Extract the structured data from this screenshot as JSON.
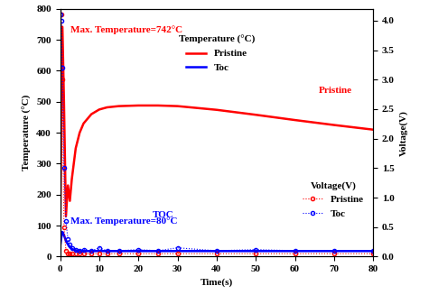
{
  "chart_data": {
    "type": "line",
    "x_label": "Time(s)",
    "y_label": "Temperature (°C)",
    "y2_label": "Voltage(V)",
    "legend_titles": {
      "y": "Temperature (°C)",
      "y2": "Voltage(V)"
    },
    "annotations": {
      "pristine_max": "Max. Temperature=742°C",
      "toc_max": "Max. Temperature=80°C",
      "photo_pristine": "Pristine",
      "photo_toc": "TOC"
    },
    "x": [
      0,
      0.3,
      0.6,
      1.0,
      1.5,
      2.0,
      2.5,
      3.0,
      4,
      5,
      6,
      8,
      10,
      12,
      15,
      20,
      25,
      30,
      40,
      50,
      60,
      70,
      80
    ],
    "xlim": [
      0,
      80
    ],
    "xticks": [
      0,
      10,
      20,
      30,
      40,
      50,
      60,
      70,
      80
    ],
    "ylim": [
      0,
      800
    ],
    "yticks": [
      0,
      100,
      200,
      300,
      400,
      500,
      600,
      700,
      800
    ],
    "y2lim": [
      0,
      4.2
    ],
    "y2ticks": [
      {
        "value": 0,
        "label": "0.0"
      },
      {
        "value": 0.5,
        "label": "0.5"
      },
      {
        "value": 1,
        "label": "1.0"
      },
      {
        "value": 1.5,
        "label": "1.5"
      },
      {
        "value": 2,
        "label": "2.0"
      },
      {
        "value": 2.5,
        "label": "2.5"
      },
      {
        "value": 3,
        "label": "3.0"
      },
      {
        "value": 3.5,
        "label": "3.5"
      },
      {
        "value": 4,
        "label": "4.0"
      }
    ],
    "legend": "upper center",
    "series": [
      {
        "name": "Pristine",
        "color": "#ff0000",
        "line_style": "solid",
        "marker": "none",
        "values": [
          30,
          400,
          742,
          500,
          130,
          230,
          180,
          250,
          350,
          400,
          430,
          460,
          475,
          482,
          486,
          488,
          488,
          486,
          474,
          458,
          441,
          425,
          410
        ]
      },
      {
        "name": "Toc",
        "color": "#0000ff",
        "line_style": "solid",
        "marker": "none",
        "values": [
          30,
          60,
          80,
          70,
          50,
          40,
          30,
          25,
          20,
          18,
          18,
          18,
          18,
          18,
          18,
          18,
          18,
          18,
          18,
          18,
          18,
          18,
          18
        ]
      },
      {
        "name": "Pristine",
        "color": "#ff0000",
        "line_style": "dotted",
        "marker": "circle",
        "axis": "y2",
        "values": [
          4.1,
          4.1,
          3.0,
          0.5,
          0.1,
          0.05,
          0.05,
          0.05,
          0.05,
          0.05,
          0.05,
          0.05,
          0.05,
          0.05,
          0.05,
          0.05,
          0.05,
          0.05,
          0.05,
          0.05,
          0.05,
          0.05,
          0.05
        ]
      },
      {
        "name": "Toc",
        "color": "#0000ff",
        "line_style": "dotted",
        "marker": "circle",
        "axis": "y2",
        "values": [
          4.1,
          4.0,
          3.2,
          1.5,
          0.6,
          0.3,
          0.2,
          0.15,
          0.12,
          0.1,
          0.12,
          0.1,
          0.15,
          0.1,
          0.1,
          0.12,
          0.1,
          0.15,
          0.1,
          0.12,
          0.1,
          0.1,
          0.1
        ]
      }
    ]
  }
}
